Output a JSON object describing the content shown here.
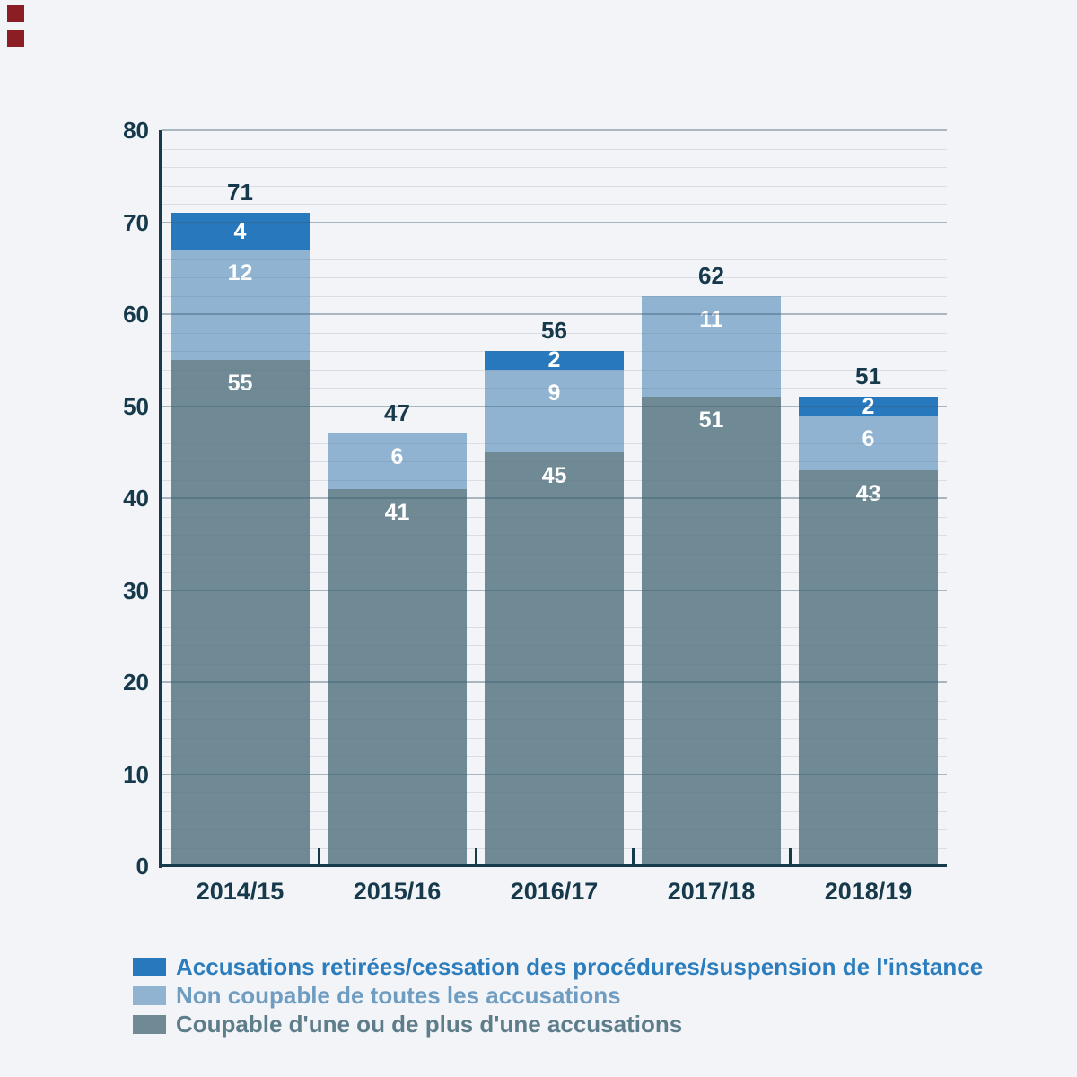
{
  "page": {
    "background": "#f2f4f7"
  },
  "decor": {
    "square_color": "#8b1e22"
  },
  "chart_data": {
    "type": "bar",
    "stacked": true,
    "title": "",
    "categories": [
      "2014/15",
      "2015/16",
      "2016/17",
      "2017/18",
      "2018/19"
    ],
    "series": [
      {
        "name": "Coupable d'une ou de plus d'une accusations",
        "color": "#6f8a94",
        "values": [
          55,
          41,
          45,
          51,
          43
        ]
      },
      {
        "name": "Non coupable de toutes les accusations",
        "color": "#90b3d2",
        "values": [
          12,
          6,
          9,
          11,
          6
        ]
      },
      {
        "name": "Accusations retirées/cessation des procédures/suspension de l'instance",
        "color": "#2778bc",
        "values": [
          4,
          0,
          2,
          0,
          2
        ]
      }
    ],
    "totals": [
      71,
      47,
      56,
      62,
      51
    ],
    "ylim": [
      0,
      80
    ],
    "y_major_ticks": [
      0,
      10,
      20,
      30,
      40,
      50,
      60,
      70,
      80
    ],
    "y_minor_step": 2,
    "grid": true,
    "legend_position": "bottom-left",
    "axis_color": "#16394c",
    "value_label_color": "#ffffff",
    "total_label_color": "#16394c"
  },
  "legend": {
    "items": [
      {
        "label": "Accusations retirées/cessation des procédures/suspension de l'instance",
        "swatch_color": "#2778bc",
        "text_color": "#2b7dbd"
      },
      {
        "label": "Non coupable de toutes les accusations",
        "swatch_color": "#90b3d2",
        "text_color": "#6f9dc2"
      },
      {
        "label": "Coupable d'une ou de plus d'une accusations",
        "swatch_color": "#6f8a94",
        "text_color": "#5e7d8b"
      }
    ]
  }
}
